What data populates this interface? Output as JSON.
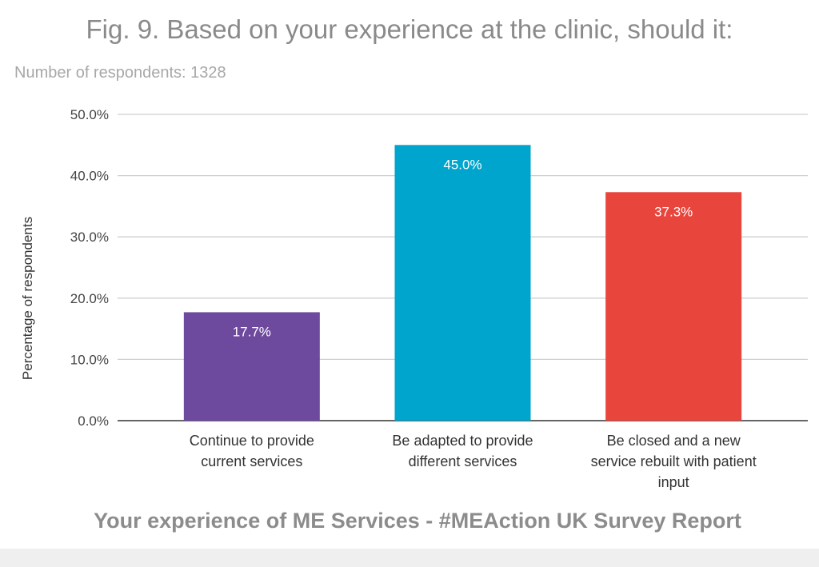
{
  "chart_data": {
    "type": "bar",
    "title": "Fig. 9. Based on your experience at the clinic, should it:",
    "subtitle": "Number of respondents: 1328",
    "categories": [
      [
        "Continue to provide",
        "current services"
      ],
      [
        "Be adapted to provide",
        "different services"
      ],
      [
        "Be closed and a new",
        "service rebuilt with patient",
        "input"
      ]
    ],
    "values": [
      17.7,
      45.0,
      37.3
    ],
    "data_labels": [
      "17.7%",
      "45.0%",
      "37.3%"
    ],
    "colors": [
      "#6e4a9e",
      "#00a5cd",
      "#e8453c"
    ],
    "xlabel": "",
    "ylabel": "Percentage of respondents",
    "ylim": [
      0,
      50
    ],
    "yticks": [
      "0.0%",
      "10.0%",
      "20.0%",
      "30.0%",
      "40.0%",
      "50.0%"
    ],
    "grid": true
  },
  "footer": "Your experience of ME Services - #MEAction UK Survey Report"
}
